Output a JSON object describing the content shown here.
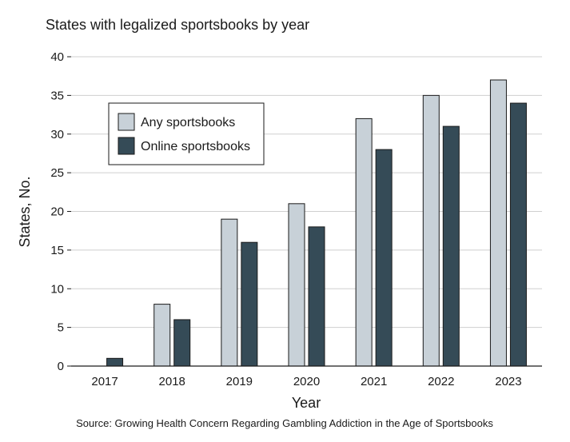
{
  "chart_data": {
    "type": "bar",
    "title": "States with legalized sportsbooks by year",
    "xlabel": "Year",
    "ylabel": "States, No.",
    "categories": [
      "2017",
      "2018",
      "2019",
      "2020",
      "2021",
      "2022",
      "2023"
    ],
    "series": [
      {
        "name": "Any sportsbooks",
        "color": "#c8d1d8",
        "values": [
          0,
          8,
          19,
          21,
          32,
          35,
          37
        ]
      },
      {
        "name": "Online sportsbooks",
        "color": "#354b57",
        "values": [
          1,
          6,
          16,
          18,
          28,
          31,
          34
        ]
      }
    ],
    "ylim": [
      0,
      40
    ],
    "yticks": [
      0,
      5,
      10,
      15,
      20,
      25,
      30,
      35,
      40
    ],
    "grid": true,
    "legend_position": "top-left"
  },
  "source": "Source: Growing Health Concern Regarding Gambling Addiction in the Age of Sportsbooks"
}
